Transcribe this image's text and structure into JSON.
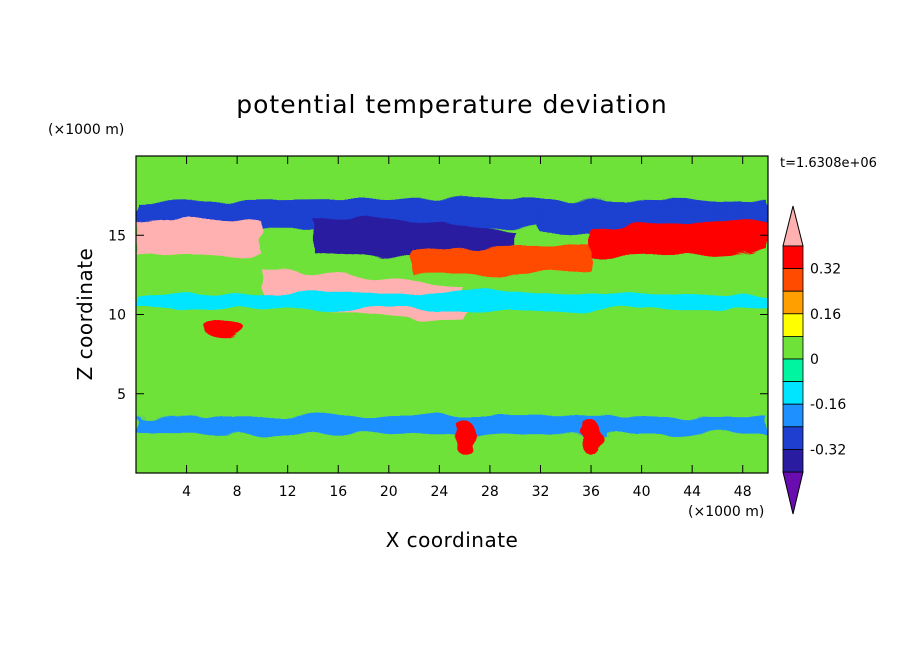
{
  "chart_data": {
    "type": "heatmap",
    "title": "potential temperature deviation",
    "xlabel": "X coordinate",
    "ylabel": "Z coordinate",
    "x_unit": "(×1000 m)",
    "y_unit": "(×1000 m)",
    "time_label": "t=1.6308e+06",
    "xlim": [
      0,
      50
    ],
    "ylim": [
      0,
      20
    ],
    "x_ticks": [
      "4",
      "8",
      "12",
      "16",
      "20",
      "24",
      "28",
      "32",
      "36",
      "40",
      "44",
      "48"
    ],
    "y_ticks": [
      "5",
      "10",
      "15"
    ],
    "colorbar": {
      "levels": [
        -0.4,
        -0.32,
        -0.24,
        -0.16,
        -0.08,
        0,
        0.08,
        0.16,
        0.24,
        0.32,
        0.4
      ],
      "labels": [
        "0.32",
        "0.16",
        "0",
        "-0.16",
        "-0.32"
      ],
      "colors": [
        "#6a0db0",
        "#2a1ca0",
        "#1f3fd0",
        "#1e90ff",
        "#00e5ff",
        "#00f5a0",
        "#6fe23a",
        "#ffff00",
        "#ffa000",
        "#ff4b00",
        "#ff0000",
        "#ffb0b0"
      ]
    },
    "features": [
      {
        "x": [
          0,
          50
        ],
        "z": [
          16.3,
          16.3
        ],
        "value": -0.32
      },
      {
        "x": [
          0,
          10
        ],
        "z": [
          14.8,
          14.8
        ],
        "value": 0.4
      },
      {
        "x": [
          14,
          30
        ],
        "z": [
          15.0,
          14.2
        ],
        "value": -0.4
      },
      {
        "x": [
          32,
          48
        ],
        "z": [
          16.0,
          15.6
        ],
        "value": -0.32
      },
      {
        "x": [
          36,
          50
        ],
        "z": [
          14.5,
          15.0
        ],
        "value": 0.36
      },
      {
        "x": [
          10,
          26
        ],
        "z": [
          11.8,
          10.6
        ],
        "value": 0.4
      },
      {
        "x": [
          22,
          36
        ],
        "z": [
          13.2,
          13.5
        ],
        "value": 0.3
      },
      {
        "x": [
          0,
          50
        ],
        "z": [
          10.8,
          10.8
        ],
        "value": -0.12
      },
      {
        "x": [
          6,
          8
        ],
        "z": [
          9.1,
          9.1
        ],
        "value": 0.34
      },
      {
        "x": [
          0,
          50
        ],
        "z": [
          3.0,
          3.0
        ],
        "value": -0.2
      },
      {
        "x": [
          26,
          26
        ],
        "z": [
          1.5,
          3.0
        ],
        "value": 0.36
      },
      {
        "x": [
          36,
          36
        ],
        "z": [
          1.5,
          3.0
        ],
        "value": 0.36
      }
    ]
  }
}
